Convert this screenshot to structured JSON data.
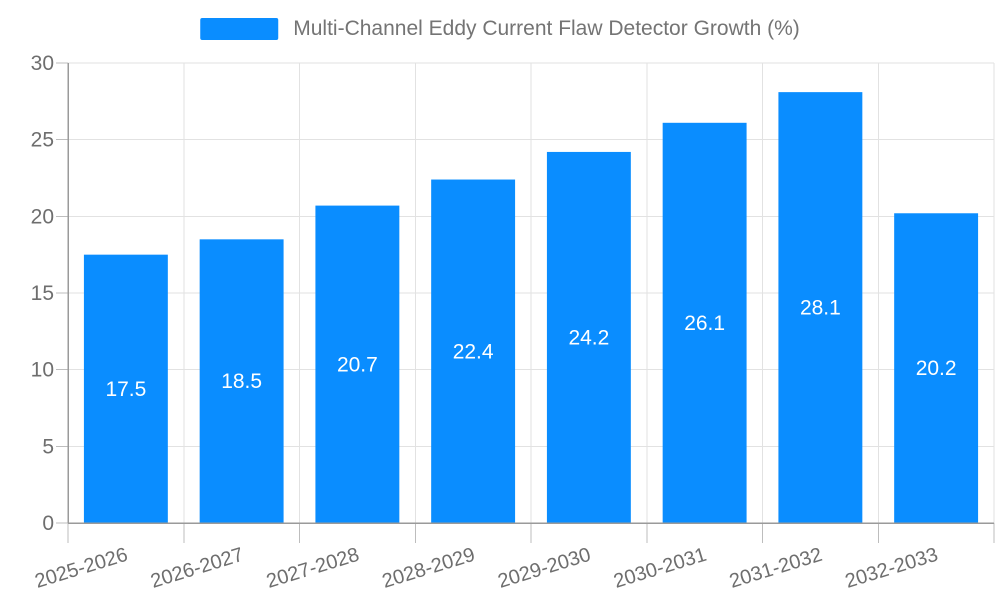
{
  "legend": {
    "label": "Multi-Channel Eddy Current Flaw Detector Growth (%)"
  },
  "colors": {
    "bar": "#0A8DFF",
    "grid": "#e2e2e2",
    "axis": "#9a9a9a",
    "tick": "#bdbdbd",
    "tick_text": "#6e6e6e",
    "legend_text": "#747474",
    "bar_label_text": "#ffffff",
    "background": "#ffffff"
  },
  "chart_data": {
    "type": "bar",
    "title": "Multi-Channel Eddy Current Flaw Detector Growth (%)",
    "series_name": "Multi-Channel Eddy Current Flaw Detector Growth (%)",
    "categories": [
      "2025-2026",
      "2026-2027",
      "2027-2028",
      "2028-2029",
      "2029-2030",
      "2030-2031",
      "2031-2032",
      "2032-2033"
    ],
    "values": [
      17.5,
      18.5,
      20.7,
      22.4,
      24.2,
      26.1,
      28.1,
      20.2
    ],
    "value_labels": [
      "17.5",
      "18.5",
      "20.7",
      "22.4",
      "24.2",
      "26.1",
      "28.1",
      "20.2"
    ],
    "xlabel": "",
    "ylabel": "",
    "ylim": [
      0,
      30
    ],
    "yticks": [
      0,
      5,
      10,
      15,
      20,
      25,
      30
    ],
    "grid": true,
    "legend_position": "top",
    "value_label_position": "inside-center",
    "xtick_rotation_deg": -17
  }
}
